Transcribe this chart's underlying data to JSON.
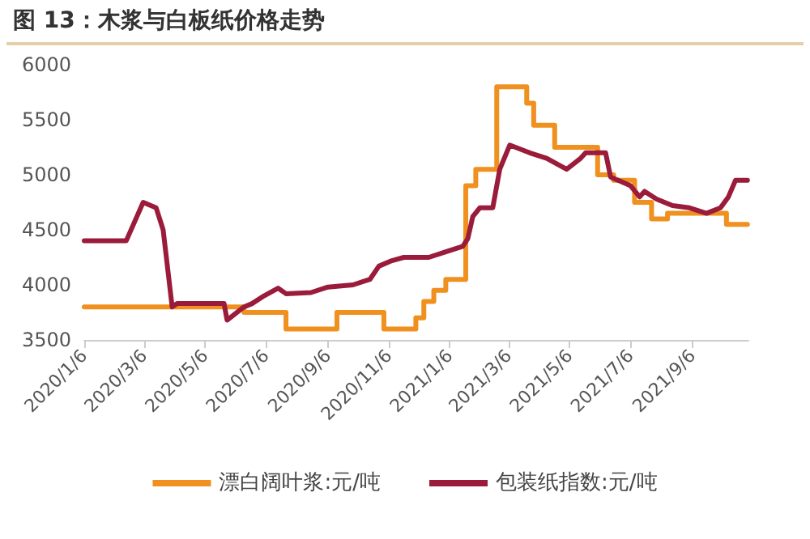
{
  "chart_data": {
    "type": "line",
    "title": "图 13：木浆与白板纸价格走势",
    "series": [
      {
        "name": "漂白阔叶浆:元/吨",
        "type": "step",
        "color": "#f0901e",
        "x": [
          "2020-01-06",
          "2020-06-14",
          "2020-07-26",
          "2020-09-15",
          "2020-11-01",
          "2020-12-03",
          "2020-12-11",
          "2020-12-21",
          "2021-01-02",
          "2021-01-22",
          "2021-02-01",
          "2021-02-22",
          "2021-03-24",
          "2021-03-31",
          "2021-04-21",
          "2021-06-03",
          "2021-06-19",
          "2021-07-10",
          "2021-07-27",
          "2021-08-12",
          "2021-10-10",
          "2021-10-31"
        ],
        "values": [
          3800,
          3750,
          3600,
          3750,
          3600,
          3700,
          3850,
          3950,
          4050,
          4900,
          5050,
          5800,
          5650,
          5450,
          5250,
          5000,
          4950,
          4750,
          4600,
          4650,
          4550,
          4550
        ]
      },
      {
        "name": "包装纸指数:元/吨",
        "color": "#9b1b3a",
        "x": [
          "2020-01-06",
          "2020-02-17",
          "2020-03-05",
          "2020-03-18",
          "2020-03-25",
          "2020-04-03",
          "2020-04-08",
          "2020-05-25",
          "2020-05-28",
          "2020-06-14",
          "2020-06-22",
          "2020-07-04",
          "2020-07-18",
          "2020-07-26",
          "2020-08-20",
          "2020-09-06",
          "2020-10-01",
          "2020-10-18",
          "2020-10-27",
          "2020-11-09",
          "2020-11-21",
          "2020-12-16",
          "2021-01-02",
          "2021-01-19",
          "2021-01-24",
          "2021-01-29",
          "2021-02-05",
          "2021-02-18",
          "2021-02-25",
          "2021-03-07",
          "2021-03-27",
          "2021-04-13",
          "2021-05-03",
          "2021-05-17",
          "2021-05-22",
          "2021-06-11",
          "2021-06-16",
          "2021-07-06",
          "2021-07-15",
          "2021-07-20",
          "2021-08-01",
          "2021-08-17",
          "2021-09-03",
          "2021-09-20",
          "2021-10-04",
          "2021-10-12",
          "2021-10-19",
          "2021-10-31"
        ],
        "values": [
          4400,
          4400,
          4750,
          4700,
          4500,
          3800,
          3830,
          3830,
          3680,
          3800,
          3830,
          3900,
          3970,
          3920,
          3930,
          3980,
          4000,
          4050,
          4170,
          4220,
          4250,
          4250,
          4300,
          4350,
          4420,
          4620,
          4700,
          4700,
          5050,
          5270,
          5200,
          5150,
          5050,
          5150,
          5200,
          5200,
          4980,
          4900,
          4800,
          4850,
          4780,
          4720,
          4700,
          4650,
          4700,
          4800,
          4950,
          4950
        ]
      }
    ],
    "xlim": [
      "2020-01-06",
      "2021-11-01"
    ],
    "xticks": [
      {
        "value": "2020-01-06",
        "label": "2020/1/6"
      },
      {
        "value": "2020-03-06",
        "label": "2020/3/6"
      },
      {
        "value": "2020-05-06",
        "label": "2020/5/6"
      },
      {
        "value": "2020-07-06",
        "label": "2020/7/6"
      },
      {
        "value": "2020-09-06",
        "label": "2020/9/6"
      },
      {
        "value": "2020-11-06",
        "label": "2020/11/6"
      },
      {
        "value": "2021-01-06",
        "label": "2021/1/6"
      },
      {
        "value": "2021-03-06",
        "label": "2021/3/6"
      },
      {
        "value": "2021-05-06",
        "label": "2021/5/6"
      },
      {
        "value": "2021-07-06",
        "label": "2021/7/6"
      },
      {
        "value": "2021-09-06",
        "label": "2021/9/6"
      }
    ],
    "ylim": [
      3500,
      6000
    ],
    "yticks": [
      3500,
      4000,
      4500,
      5000,
      5500,
      6000
    ],
    "grid": false,
    "legend": "bottom",
    "marker": "none",
    "line_style": "solid"
  }
}
